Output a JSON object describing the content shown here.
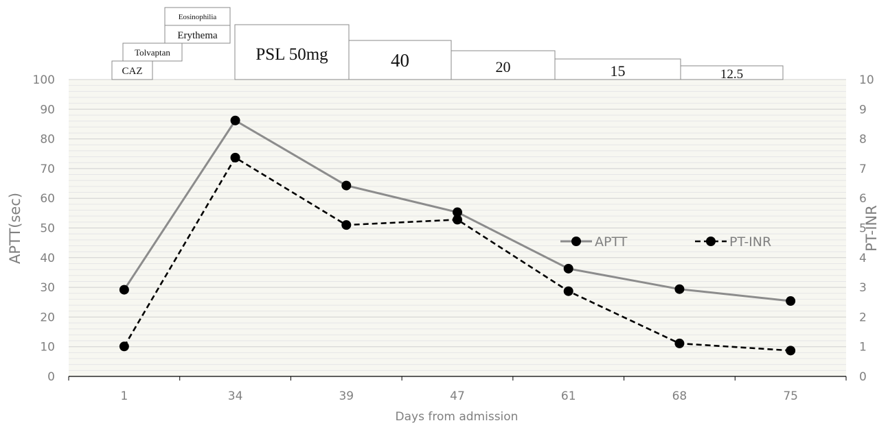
{
  "chart_data": {
    "type": "line",
    "title": "",
    "xlabel": "Days from admission",
    "ylabel": "APTT(sec)",
    "y2label": "PT-INR",
    "categories": [
      "1",
      "34",
      "39",
      "47",
      "61",
      "68",
      "75"
    ],
    "ylim": [
      0,
      100
    ],
    "yticks": [
      0,
      10,
      20,
      30,
      40,
      50,
      60,
      70,
      80,
      90,
      100
    ],
    "y2lim": [
      0,
      10
    ],
    "y2ticks": [
      0,
      1,
      2,
      3,
      4,
      5,
      6,
      7,
      8,
      9,
      10
    ],
    "grid": true,
    "legend_position": "right",
    "series": [
      {
        "name": "APTT",
        "axis": "left",
        "style": "solid",
        "color": "#8c8c8c",
        "marker_color": "#000000",
        "values": [
          29.2,
          86.2,
          64.3,
          55.3,
          36.3,
          29.4,
          25.4
        ]
      },
      {
        "name": "PT-INR",
        "axis": "right",
        "style": "dashed",
        "color": "#000000",
        "marker_color": "#000000",
        "values": [
          1.01,
          7.37,
          5.1,
          5.28,
          2.87,
          1.11,
          0.87
        ]
      }
    ],
    "annotations": [
      {
        "label": "CAZ"
      },
      {
        "label": "Tolvaptan"
      },
      {
        "label": "Erythema"
      },
      {
        "label": "Eosinophilia"
      },
      {
        "label": "PSL 50mg"
      },
      {
        "label": "40"
      },
      {
        "label": "20"
      },
      {
        "label": "15"
      },
      {
        "label": "12.5"
      }
    ]
  }
}
